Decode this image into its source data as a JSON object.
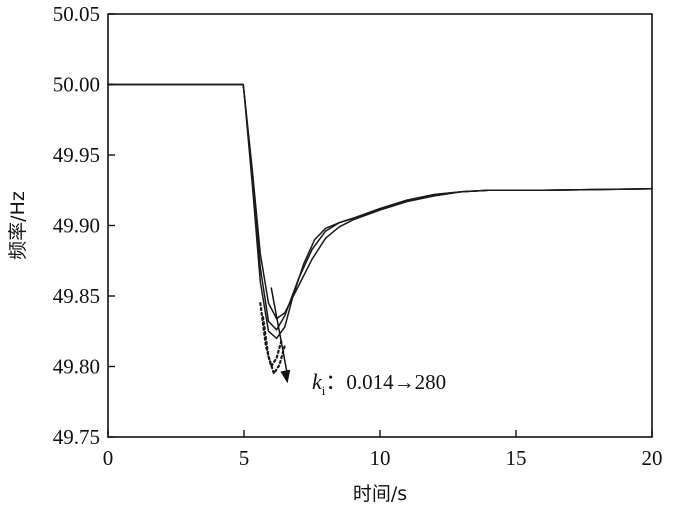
{
  "chart_data": {
    "type": "line",
    "xlabel": "时间/s",
    "ylabel": "频率/Hz",
    "xlim": [
      0,
      20
    ],
    "ylim": [
      49.75,
      50.05
    ],
    "xticks": [
      0,
      5,
      10,
      15,
      20
    ],
    "yticks": [
      49.75,
      49.8,
      49.85,
      49.9,
      49.95,
      50.0,
      50.05
    ],
    "ytick_labels": [
      "49.75",
      "49.80",
      "49.85",
      "49.90",
      "49.95",
      "50.00",
      "50.05"
    ],
    "grid": false,
    "annotation": {
      "symbol": "k",
      "subscript": "i",
      "text": "：0.014→280",
      "arrow_from": [
        6.0,
        49.856
      ],
      "arrow_to": [
        6.6,
        49.788
      ]
    },
    "series": [
      {
        "style": "solid",
        "x": [
          0,
          4.97,
          5.0,
          5.3,
          5.6,
          5.9,
          6.2,
          6.5,
          7.0,
          7.5,
          8.0,
          8.5,
          9.0,
          10.0,
          11.0,
          12.0,
          13.0,
          14.0,
          16.0,
          20.0
        ],
        "y": [
          50.0,
          50.0,
          49.995,
          49.94,
          49.88,
          49.845,
          49.834,
          49.838,
          49.857,
          49.876,
          49.891,
          49.899,
          49.904,
          49.911,
          49.917,
          49.921,
          49.924,
          49.925,
          49.925,
          49.926
        ]
      },
      {
        "style": "solid",
        "x": [
          0,
          4.97,
          5.0,
          5.3,
          5.6,
          5.9,
          6.2,
          6.5,
          7.0,
          7.5,
          8.0,
          8.5,
          9.0,
          10.0,
          11.0,
          12.0,
          13.0,
          14.0,
          16.0,
          20.0
        ],
        "y": [
          50.0,
          50.0,
          49.995,
          49.935,
          49.87,
          49.832,
          49.826,
          49.836,
          49.862,
          49.883,
          49.896,
          49.902,
          49.905,
          49.912,
          49.918,
          49.922,
          49.924,
          49.925,
          49.925,
          49.926
        ]
      },
      {
        "style": "solid",
        "x": [
          0,
          4.97,
          5.0,
          5.3,
          5.6,
          5.9,
          6.2,
          6.5,
          6.8,
          7.2,
          7.6,
          8.0,
          8.5,
          9.0,
          10.0,
          11.0,
          12.0,
          13.0,
          14.0,
          16.0,
          20.0
        ],
        "y": [
          50.0,
          50.0,
          49.995,
          49.93,
          49.86,
          49.825,
          49.82,
          49.828,
          49.85,
          49.873,
          49.89,
          49.898,
          49.902,
          49.905,
          49.912,
          49.918,
          49.922,
          49.924,
          49.925,
          49.925,
          49.926
        ]
      },
      {
        "style": "dotted",
        "x": [
          5.6,
          5.8,
          6.0,
          6.2,
          6.4
        ],
        "y": [
          49.845,
          49.815,
          49.8,
          49.806,
          49.82
        ]
      },
      {
        "style": "dotted",
        "x": [
          5.7,
          5.9,
          6.1,
          6.3,
          6.5
        ],
        "y": [
          49.835,
          49.807,
          49.795,
          49.801,
          49.815
        ]
      }
    ]
  }
}
